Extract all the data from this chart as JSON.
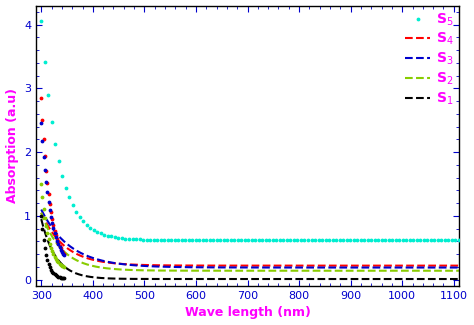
{
  "xlabel": "Wave length (nm)",
  "ylabel": "Absorption (a.u)",
  "xlim": [
    290,
    1110
  ],
  "ylim": [
    -0.1,
    4.3
  ],
  "xticks": [
    300,
    400,
    500,
    600,
    700,
    800,
    900,
    1000,
    1100
  ],
  "yticks": [
    0,
    1,
    2,
    3,
    4
  ],
  "series": [
    {
      "label": "S$_5$",
      "color": "#00EED1",
      "linestyle": "--",
      "peak": 4.05,
      "decay": 0.03,
      "base": 0.62,
      "dotted": true
    },
    {
      "label": "S$_4$",
      "color": "#FF0000",
      "linestyle": "--",
      "peak": 1.05,
      "decay": 0.06,
      "base": 0.22,
      "dotted": false
    },
    {
      "label": "S$_3$",
      "color": "#0000CC",
      "linestyle": "--",
      "peak": 1.1,
      "decay": 0.055,
      "base": 0.18,
      "dotted": false
    },
    {
      "label": "S$_2$",
      "color": "#88CC00",
      "linestyle": "--",
      "peak": 1.0,
      "decay": 0.07,
      "base": 0.13,
      "dotted": false
    },
    {
      "label": "S$_1$",
      "color": "#000000",
      "linestyle": "--",
      "peak": 0.95,
      "decay": 0.1,
      "base": 0.02,
      "dotted": false
    }
  ],
  "dot_series": [
    {
      "color": "#00EED1",
      "peak": 4.05,
      "decay": 0.03,
      "base": 0.62
    },
    {
      "color": "#FF0000",
      "peak": 2.9,
      "decay": 0.06,
      "base": 0.22
    },
    {
      "color": "#0000CC",
      "peak": 2.5,
      "decay": 0.055,
      "base": 0.18
    },
    {
      "color": "#88CC00",
      "peak": 1.55,
      "decay": 0.07,
      "base": 0.13
    },
    {
      "color": "#000000",
      "peak": 1.0,
      "decay": 0.1,
      "base": 0.02
    }
  ],
  "legend_label_color": "#FF00FF",
  "axis_label_color": "#FF00FF",
  "tick_color_x": "#0000CC",
  "tick_color_y": "#0000CC",
  "background_color": "#FFFFFF"
}
